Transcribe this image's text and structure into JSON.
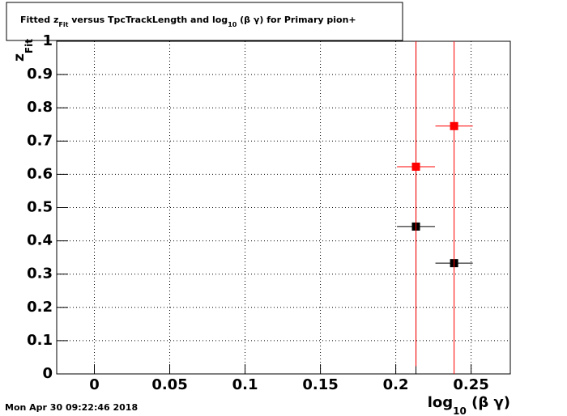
{
  "chart_data": {
    "type": "scatter",
    "title": [
      "Fitted  z",
      "Fit",
      "  versus TpcTrackLength and log",
      "10",
      " (β γ) for Primary pion+"
    ],
    "y_label": [
      "z",
      "Fit"
    ],
    "x_label": [
      "log",
      "10",
      " (β γ)"
    ],
    "timestamp": "Mon Apr 30 09:22:46 2018",
    "xlim": [
      -0.025,
      0.276
    ],
    "ylim": [
      0,
      1
    ],
    "xticks": [
      0,
      0.05,
      0.1,
      0.15,
      0.2,
      0.25
    ],
    "yticks": [
      0,
      0.1,
      0.2,
      0.3,
      0.4,
      0.5,
      0.6,
      0.7,
      0.8,
      0.9,
      1
    ],
    "grid": true,
    "series": [
      {
        "color": "#000000",
        "x": [
          0.2134,
          0.2387
        ],
        "values": [
          0.443,
          0.333
        ],
        "xerr": [
          0.0126,
          0.0124
        ],
        "yerr": [
          0.6,
          0.0
        ]
      },
      {
        "color": "#ff0000",
        "x": [
          0.2134,
          0.2387
        ],
        "values": [
          0.623,
          0.745
        ],
        "xerr": [
          0.0126,
          0.0124
        ],
        "yerr": [
          0.6,
          0.8
        ]
      }
    ]
  }
}
